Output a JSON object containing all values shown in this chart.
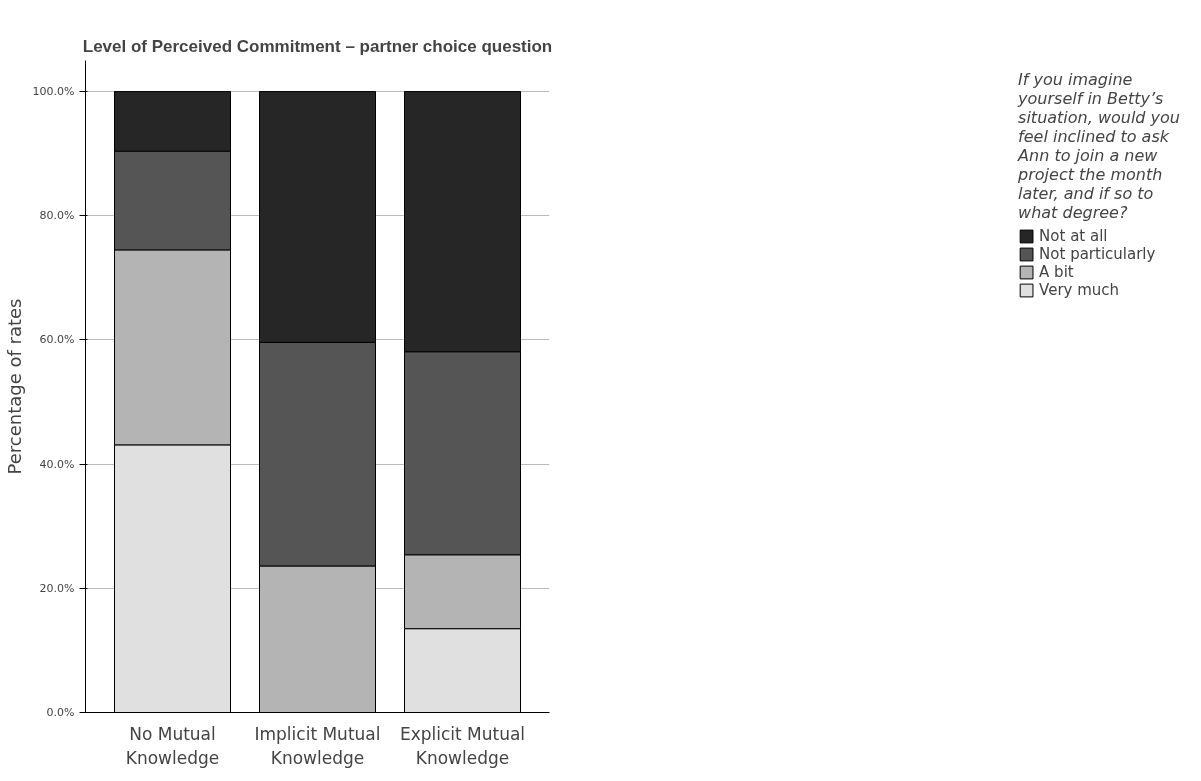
{
  "chart_data": {
    "type": "bar",
    "stacked": true,
    "title": "Level of Perceived Commitment – partner choice question",
    "ylabel": "Percentage of rates",
    "legend_title": "If you imagine yourself in Betty’s situation, would you feel inclined to ask Ann to join a new project the month later, and if so to what degree?",
    "categories": [
      "No Mutual Knowledge",
      "Implicit Mutual Knowledge",
      "Explicit Mutual Knowledge"
    ],
    "series": [
      {
        "name": "Very much",
        "color": "#e0e0e0",
        "values": [
          43.1,
          0,
          13.5
        ]
      },
      {
        "name": "A bit",
        "color": "#b4b4b4",
        "values": [
          31.4,
          23.6,
          11.9
        ]
      },
      {
        "name": "Not particularly",
        "color": "#555555",
        "values": [
          15.9,
          36.0,
          32.7
        ]
      },
      {
        "name": "Not at all",
        "color": "#262626",
        "values": [
          9.6,
          40.4,
          41.9
        ]
      }
    ],
    "ylim": [
      0,
      105
    ],
    "yticks": [
      {
        "value": 0,
        "label": "0.0%"
      },
      {
        "value": 20,
        "label": "20.0%"
      },
      {
        "value": 40,
        "label": "40.0%"
      },
      {
        "value": 60,
        "label": "60.0%"
      },
      {
        "value": 80,
        "label": "80.0%"
      },
      {
        "value": 100,
        "label": "100.0%"
      }
    ],
    "grid": "y",
    "legend": "right"
  }
}
